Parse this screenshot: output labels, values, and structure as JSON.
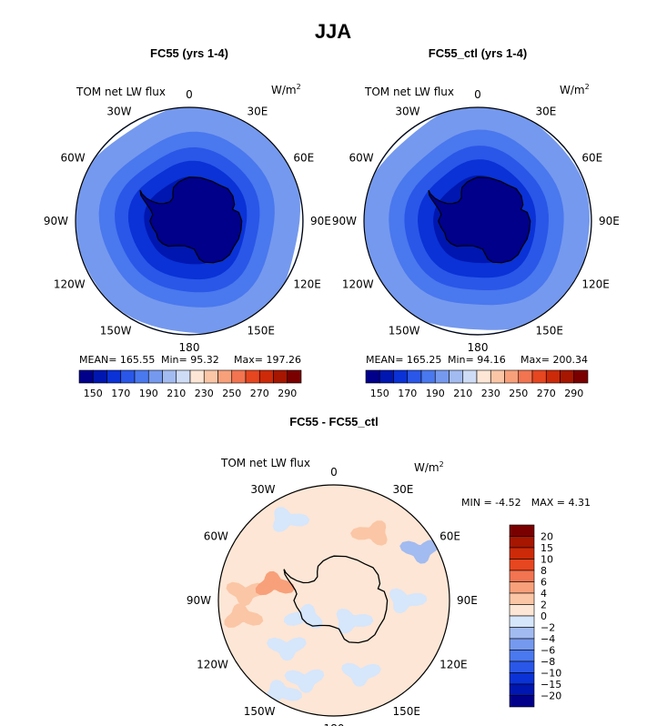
{
  "page_title": "JJA",
  "chart_data": [
    {
      "type": "heatmap",
      "title": "FC55 (yrs 1-4)",
      "variable": "TOM net LW flux",
      "units": "W/m",
      "units_exp": "2",
      "projection": "south-polar-stereographic",
      "longitude_labels": [
        "0",
        "30E",
        "60E",
        "90E",
        "120E",
        "150E",
        "180",
        "150W",
        "120W",
        "90W",
        "60W",
        "30W"
      ],
      "stats": {
        "mean_label": "MEAN=",
        "mean": "165.55",
        "min_label": "Min=",
        "min": "95.32",
        "max_label": "Max=",
        "max": "197.26"
      },
      "colorbar_ticks": [
        "150",
        "170",
        "190",
        "210",
        "230",
        "250",
        "270",
        "290"
      ],
      "colorbar_levels": [
        140,
        150,
        160,
        170,
        180,
        190,
        200,
        210,
        220,
        230,
        240,
        250,
        260,
        270,
        280,
        290,
        300
      ],
      "rings": [
        {
          "from_lat": -90,
          "to_lat": -70,
          "value": 150
        },
        {
          "from_lat": -70,
          "to_lat": -63,
          "value": 160
        },
        {
          "from_lat": -63,
          "to_lat": -57,
          "value": 170
        },
        {
          "from_lat": -57,
          "to_lat": -50,
          "value": 180
        },
        {
          "from_lat": -50,
          "to_lat": -38,
          "value": 190
        }
      ]
    },
    {
      "type": "heatmap",
      "title": "FC55_ctl (yrs 1-4)",
      "variable": "TOM net LW flux",
      "units": "W/m",
      "units_exp": "2",
      "projection": "south-polar-stereographic",
      "longitude_labels": [
        "0",
        "30E",
        "60E",
        "90E",
        "120E",
        "150E",
        "180",
        "150W",
        "120W",
        "90W",
        "60W",
        "30W"
      ],
      "stats": {
        "mean_label": "MEAN=",
        "mean": "165.25",
        "min_label": "Min=",
        "min": "94.16",
        "max_label": "Max=",
        "max": "200.34"
      },
      "colorbar_ticks": [
        "150",
        "170",
        "190",
        "210",
        "230",
        "250",
        "270",
        "290"
      ],
      "colorbar_levels": [
        140,
        150,
        160,
        170,
        180,
        190,
        200,
        210,
        220,
        230,
        240,
        250,
        260,
        270,
        280,
        290,
        300
      ],
      "rings": [
        {
          "from_lat": -90,
          "to_lat": -70,
          "value": 150
        },
        {
          "from_lat": -70,
          "to_lat": -63,
          "value": 160
        },
        {
          "from_lat": -63,
          "to_lat": -57,
          "value": 170
        },
        {
          "from_lat": -57,
          "to_lat": -50,
          "value": 180
        },
        {
          "from_lat": -50,
          "to_lat": -38,
          "value": 190
        }
      ]
    },
    {
      "type": "heatmap",
      "title": "FC55 - FC55_ctl",
      "variable": "TOM net LW flux",
      "units": "W/m",
      "units_exp": "2",
      "projection": "south-polar-stereographic",
      "longitude_labels": [
        "0",
        "30E",
        "60E",
        "90E",
        "120E",
        "150E",
        "180",
        "150W",
        "120W",
        "90W",
        "60W",
        "30W"
      ],
      "stats": {
        "min_label": "MIN =",
        "min": "-4.52",
        "max_label": "MAX =",
        "max": "4.31"
      },
      "colorbar_ticks": [
        "20",
        "15",
        "10",
        "8",
        "6",
        "4",
        "2",
        "0",
        "−2",
        "−4",
        "−6",
        "−8",
        "−10",
        "−15",
        "−20"
      ],
      "background_value": 1,
      "patches": [
        {
          "lon": -85,
          "lat": -50,
          "value": 3
        },
        {
          "lon": -100,
          "lat": -48,
          "value": 3
        },
        {
          "lon": -75,
          "lat": -62,
          "value": 5
        },
        {
          "lon": 160,
          "lat": -55,
          "value": -1
        },
        {
          "lon": -160,
          "lat": -52,
          "value": -1
        },
        {
          "lon": -135,
          "lat": -60,
          "value": -1
        },
        {
          "lon": -120,
          "lat": -75,
          "value": -1
        },
        {
          "lon": 140,
          "lat": -78,
          "value": -1
        },
        {
          "lon": 60,
          "lat": -45,
          "value": -3
        },
        {
          "lon": 30,
          "lat": -55,
          "value": 2
        },
        {
          "lon": 90,
          "lat": -58,
          "value": -1
        },
        {
          "lon": -30,
          "lat": -48,
          "value": -1
        },
        {
          "lon": -150,
          "lat": -42,
          "value": -1
        }
      ]
    }
  ],
  "colors": {
    "seq": [
      "#00008b",
      "#0016b0",
      "#0a32d6",
      "#2a57e8",
      "#4a78ee",
      "#7599ee",
      "#a2bbf0",
      "#cfdcf5",
      "#fde6d5",
      "#fbc6a6",
      "#f8a07a",
      "#f27450",
      "#e64620",
      "#cc2a08",
      "#a61600",
      "#7a0000"
    ],
    "div": [
      "#00008b",
      "#0016b0",
      "#0a32d6",
      "#2a57e8",
      "#4a78ee",
      "#7599ee",
      "#a2bbf0",
      "#d6e6fb",
      "#fde6d5",
      "#fbc6a6",
      "#f8a07a",
      "#f27450",
      "#e64620",
      "#cc2a08",
      "#a61600",
      "#7a0000"
    ],
    "land": "#00008b",
    "coast": "#000000"
  }
}
